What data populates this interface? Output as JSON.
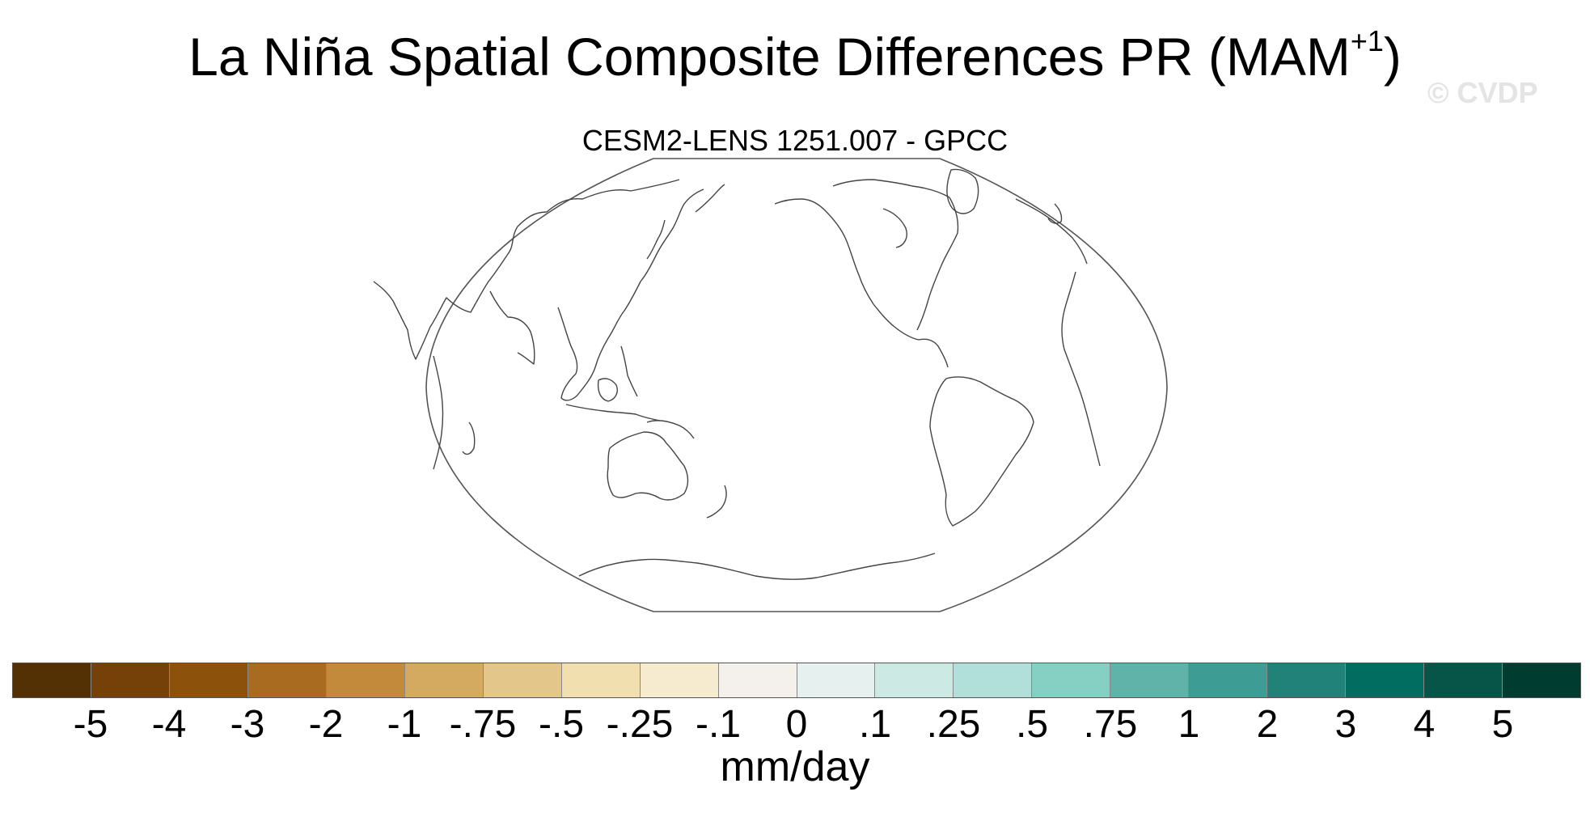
{
  "title": {
    "main": "La Niña Spatial Composite Differences PR (MAM",
    "superscript": "+1",
    "close": ")"
  },
  "watermark": "© CVDP",
  "map": {
    "subtitle": "CESM2-LENS 1251.007 - GPCC",
    "projection": "Robinson",
    "central_longitude": 180,
    "fill": "none"
  },
  "colorbar": {
    "units": "mm/day",
    "labels": [
      "-5",
      "-4",
      "-3",
      "-2",
      "-1",
      "-.75",
      "-.5",
      "-.25",
      "-.1",
      "0",
      ".1",
      ".25",
      ".5",
      ".75",
      "1",
      "2",
      "3",
      "4",
      "5"
    ],
    "colors": [
      "#543005",
      "#764009",
      "#8c510a",
      "#a96b1f",
      "#c48a3b",
      "#d3aa60",
      "#e3c78a",
      "#f1dfb0",
      "#f6ebcf",
      "#f4f1ec",
      "#e6f0ee",
      "#cce9e4",
      "#b0e0d9",
      "#85d0c2",
      "#5fb3a8",
      "#3d9c94",
      "#218279",
      "#016c60",
      "#075548",
      "#003c30"
    ]
  }
}
